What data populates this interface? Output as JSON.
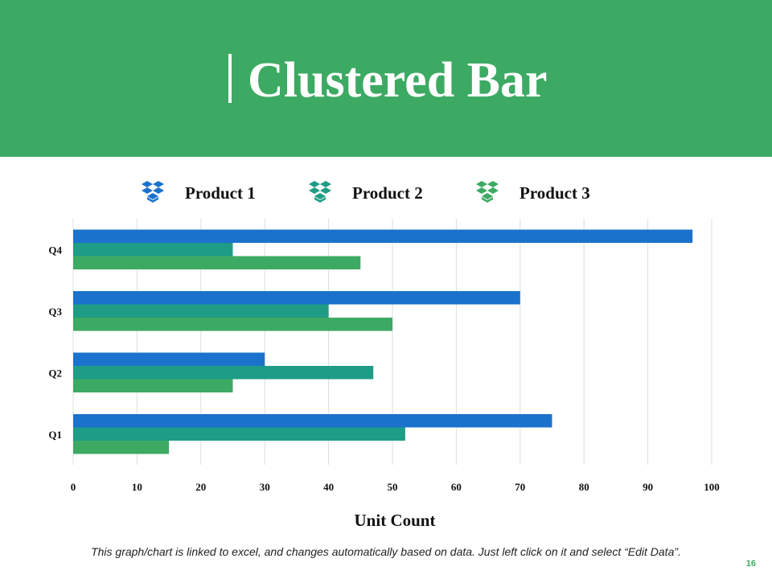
{
  "slide": {
    "title": "Clustered Bar",
    "footnote": "This graph/chart is linked to excel, and changes automatically based on data. Just left click on it and select “Edit Data”.",
    "page_number": "16"
  },
  "legend": {
    "icon": "dropbox-icon",
    "items": [
      {
        "label": "Product 1",
        "color": "#1b72cc"
      },
      {
        "label": "Product 2",
        "color": "#1e9c86"
      },
      {
        "label": "Product 3",
        "color": "#3daa63"
      }
    ]
  },
  "colors": {
    "header_bg": "#3daa63",
    "gridline": "#dddddd"
  },
  "chart_data": {
    "type": "bar",
    "orientation": "horizontal",
    "categories": [
      "Q1",
      "Q2",
      "Q3",
      "Q4"
    ],
    "series": [
      {
        "name": "Product 1",
        "color": "#1b72cc",
        "values": [
          75,
          30,
          70,
          97
        ]
      },
      {
        "name": "Product 2",
        "color": "#1e9c86",
        "values": [
          52,
          47,
          40,
          25
        ]
      },
      {
        "name": "Product 3",
        "color": "#3daa63",
        "values": [
          15,
          25,
          50,
          45
        ]
      }
    ],
    "xlim": [
      0,
      100
    ],
    "xticks": [
      0,
      10,
      20,
      30,
      40,
      50,
      60,
      70,
      80,
      90,
      100
    ],
    "xlabel": "Unit Count",
    "ylabel": "",
    "grid": true,
    "legend_position": "top"
  }
}
